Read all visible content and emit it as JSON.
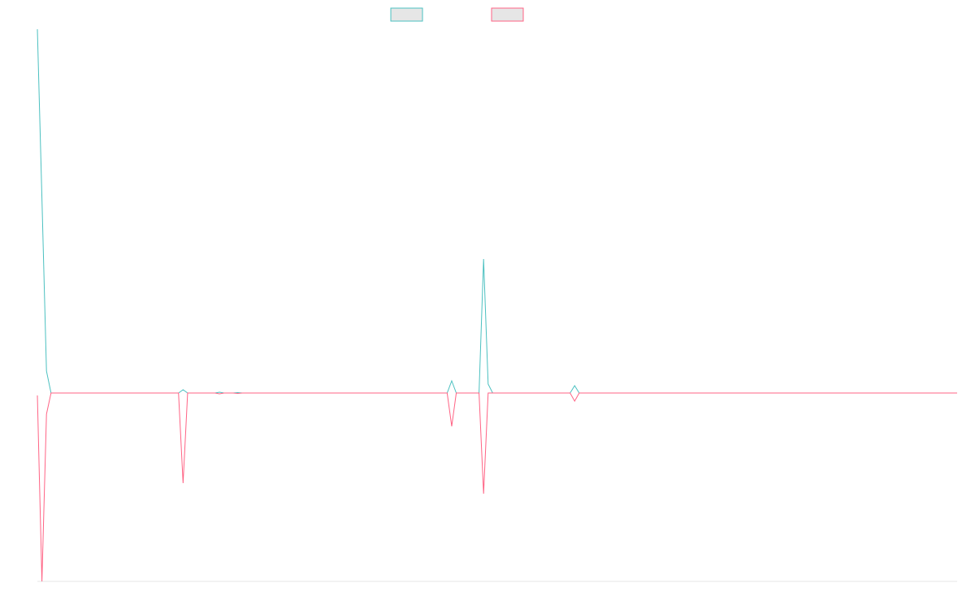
{
  "chart_data": {
    "type": "line",
    "ylim": [
      -232,
      448
    ],
    "series": [
      {
        "color": "#4bc0c0",
        "values": [
          448,
          240,
          27,
          0,
          0,
          0,
          0,
          0,
          0,
          0,
          0,
          0,
          0,
          0,
          0,
          0,
          0,
          0,
          0,
          0,
          0,
          0,
          0,
          0,
          0,
          0,
          0,
          0,
          0,
          0,
          0,
          0,
          4,
          0,
          0,
          0,
          0,
          0,
          0,
          0,
          1,
          0,
          0,
          0,
          0.5,
          0,
          0,
          0,
          0,
          0,
          0,
          0,
          0,
          0,
          0,
          0,
          0,
          0,
          0,
          0,
          0,
          0,
          0,
          0,
          0,
          0,
          0,
          0,
          0,
          0,
          0,
          0,
          0,
          0,
          0,
          0,
          0,
          0,
          0,
          0,
          0,
          0,
          0,
          0,
          0,
          0,
          0,
          0,
          0,
          0,
          0,
          15,
          0,
          0,
          0,
          0,
          0,
          0,
          165,
          11,
          0,
          0,
          0,
          0,
          0,
          0,
          0,
          0,
          0,
          0,
          0,
          0,
          0,
          0,
          0,
          0,
          0,
          0,
          9,
          0,
          0,
          0,
          0,
          0,
          0,
          0,
          0,
          0,
          0,
          0,
          0,
          0,
          0,
          0,
          0,
          0,
          0,
          0,
          0,
          0,
          0,
          0,
          0,
          0,
          0,
          0,
          0,
          0,
          0,
          0,
          0,
          0,
          0,
          0,
          0,
          0,
          0,
          0,
          0,
          0,
          0,
          0,
          0,
          0,
          0,
          0,
          0,
          0,
          0,
          0,
          0,
          0,
          0,
          0,
          0,
          0,
          0,
          0,
          0,
          0,
          0,
          0,
          0,
          0,
          0,
          0,
          0,
          0,
          0,
          0,
          0,
          0,
          0,
          0,
          0,
          0,
          0,
          0,
          0,
          0,
          0,
          0,
          0
        ]
      },
      {
        "color": "#ff6384",
        "values": [
          -3,
          -232,
          -26,
          0,
          0,
          0,
          0,
          0,
          0,
          0,
          0,
          0,
          0,
          0,
          0,
          0,
          0,
          0,
          0,
          0,
          0,
          0,
          0,
          0,
          0,
          0,
          0,
          0,
          0,
          0,
          0,
          0,
          -111,
          0,
          0,
          0,
          0,
          0,
          0,
          0,
          -1,
          0,
          0,
          0,
          -0.5,
          0,
          0,
          0,
          0,
          0,
          0,
          0,
          0,
          0,
          0,
          0,
          0,
          0,
          0,
          0,
          0,
          0,
          0,
          0,
          0,
          0,
          0,
          0,
          0,
          0,
          0,
          0,
          0,
          0,
          0,
          0,
          0,
          0,
          0,
          0,
          0,
          0,
          0,
          0,
          0,
          0,
          0,
          0,
          0,
          0,
          0,
          -41,
          0,
          0,
          0,
          0,
          0,
          0,
          -124,
          0,
          0,
          0,
          0,
          0,
          0,
          0,
          0,
          0,
          0,
          0,
          0,
          0,
          0,
          0,
          0,
          0,
          0,
          0,
          -10,
          0,
          0,
          0,
          0,
          0,
          0,
          0,
          0,
          0,
          0,
          0,
          0,
          0,
          0,
          0,
          0,
          0,
          0,
          0,
          0,
          0,
          0,
          0,
          0,
          0,
          0,
          0,
          0,
          0,
          0,
          0,
          0,
          0,
          0,
          0,
          0,
          0,
          0,
          0,
          0,
          0,
          0,
          0,
          0,
          0,
          0,
          0,
          0,
          0,
          0,
          0,
          0,
          0,
          0,
          0,
          0,
          0,
          0,
          0,
          0,
          0,
          0,
          0,
          0,
          0,
          0,
          0,
          0,
          0,
          0,
          0,
          0,
          0,
          0,
          0,
          0,
          0,
          0,
          0,
          0,
          0,
          0,
          0,
          0
        ]
      }
    ]
  }
}
